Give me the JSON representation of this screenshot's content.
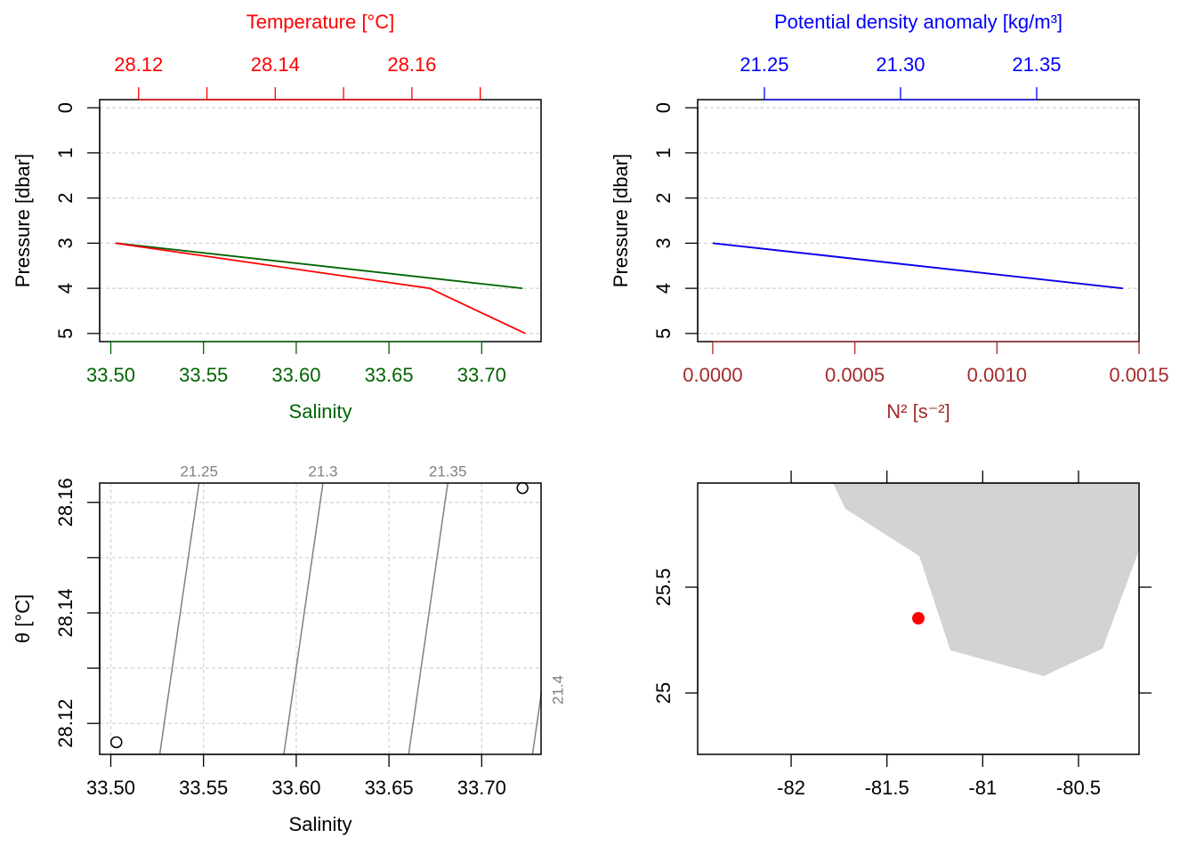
{
  "chart_data": [
    {
      "type": "profile",
      "ylabel": "Pressure [dbar]",
      "ylim": [
        5.18,
        -0.18
      ],
      "yticks": [
        0,
        1,
        2,
        3,
        4,
        5
      ],
      "grid": true,
      "xlabel": "Salinity",
      "xcolor": "#006400",
      "xlim": [
        33.494,
        33.732
      ],
      "xticks": [
        {
          "value": 33.5,
          "label": "33.50"
        },
        33.55,
        {
          "value": 33.6,
          "label": "33.60"
        },
        33.65,
        {
          "value": 33.7,
          "label": "33.70"
        }
      ],
      "x2label": "Temperature [°C]",
      "x2color": "#ff0000",
      "x2lim": [
        28.1143,
        28.1789
      ],
      "x2ticks": [
        28.12,
        28.14,
        28.16
      ],
      "x2ticks_unlabeled": [
        28.13,
        28.15,
        28.17
      ],
      "y": [
        3,
        4,
        5
      ],
      "series": [
        {
          "color": "#006400",
          "axis": "x",
          "values": [
            33.503,
            33.722,
            null
          ]
        },
        {
          "color": "#ff0000",
          "axis": "x2",
          "values": [
            28.1166,
            28.1626,
            28.1766
          ]
        }
      ]
    },
    {
      "type": "profile",
      "ylabel": "Pressure [dbar]",
      "ylim": [
        5.18,
        -0.18
      ],
      "yticks": [
        0,
        1,
        2,
        3,
        4,
        5
      ],
      "grid": true,
      "xlabel": "N² [s⁻²]",
      "xcolor": "#a52a2a",
      "xlim": [
        -5.3e-05,
        0.0015
      ],
      "xticks": [
        {
          "value": 0,
          "label": "0.0000"
        },
        {
          "value": 0.0005,
          "label": "0.0005"
        },
        {
          "value": 0.001,
          "label": "0.0010"
        },
        {
          "value": 0.0015,
          "label": "0.0015"
        }
      ],
      "x2label": "Potential density anomaly [kg/m³]",
      "x2color": "#0000ff",
      "x2lim": [
        21.2255,
        21.3876
      ],
      "x2ticks": [
        21.25,
        {
          "value": 21.3,
          "label": "21.30"
        },
        21.35
      ],
      "y": [
        3,
        4
      ],
      "series": [
        {
          "color": "#a52a2a",
          "axis": "x",
          "values": [
            0,
            0.00144
          ]
        },
        {
          "color": "#0000ff",
          "axis": "x2",
          "values": [
            21.231,
            21.3817
          ]
        }
      ]
    },
    {
      "type": "scatter",
      "xlabel": "Salinity",
      "ylabel": "θ [°C]",
      "grid": true,
      "xlim": [
        33.494,
        33.732
      ],
      "xticks": [
        {
          "value": 33.5,
          "label": "33.50"
        },
        33.55,
        {
          "value": 33.6,
          "label": "33.60"
        },
        33.65,
        {
          "value": 33.7,
          "label": "33.70"
        }
      ],
      "ylim": [
        28.1144,
        28.1635
      ],
      "yticks": [
        28.12,
        28.14,
        28.16
      ],
      "yticks_unlabeled": [
        28.13,
        28.15
      ],
      "x": [
        33.503,
        33.722
      ],
      "values": [
        28.1166,
        28.1626
      ],
      "isopycnal_color": "#808080",
      "isopycnals": [
        {
          "level": 21.25,
          "salinity": [
            33.5264,
            33.5476
          ],
          "theta": [
            28.1144,
            28.1635
          ]
        },
        {
          "level": 21.3,
          "salinity": [
            33.5933,
            33.6144
          ],
          "theta": [
            28.1144,
            28.1635
          ]
        },
        {
          "level": 21.35,
          "salinity": [
            33.6606,
            33.6817
          ],
          "theta": [
            28.1144,
            28.1635
          ]
        },
        {
          "level": 21.4,
          "salinity": [
            33.7274,
            33.7322
          ],
          "theta": [
            28.1144,
            28.1256
          ]
        }
      ]
    },
    {
      "type": "map",
      "xlim": [
        -82.488,
        -80.184
      ],
      "xticks": [
        -82,
        -81.5,
        -81,
        -80.5
      ],
      "ylim": [
        24.71,
        25.992
      ],
      "yticks": [
        25,
        25.5
      ],
      "land": {
        "color": "#d3d3d3",
        "lon": [
          -81.782,
          -81.717,
          -81.331,
          -81.169,
          -80.681,
          -80.374,
          -80.184,
          -80.184
        ],
        "lat": [
          25.992,
          25.87,
          25.647,
          25.202,
          25.08,
          25.21,
          25.676,
          25.992
        ]
      },
      "station": {
        "color": "#ff0000",
        "lon": -81.336,
        "lat": 25.353
      }
    }
  ]
}
